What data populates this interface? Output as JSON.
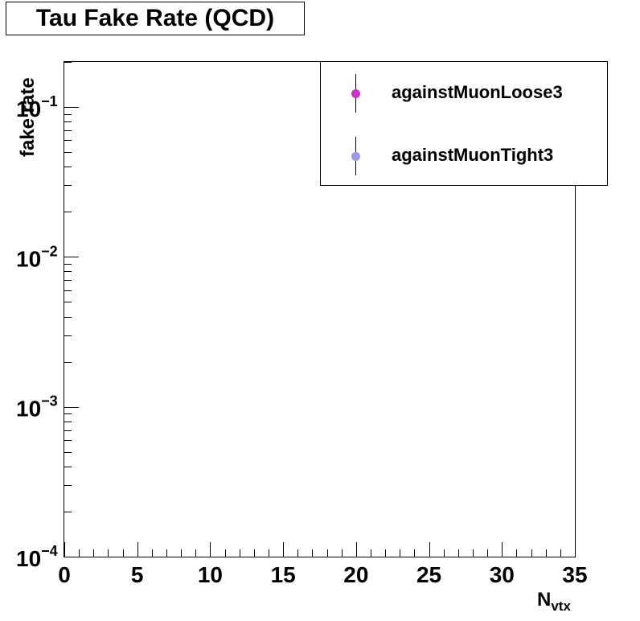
{
  "chart_data": {
    "type": "scatter",
    "title": "Tau Fake Rate (QCD)",
    "xlabel": "N",
    "xlabel_sub": "vtx",
    "ylabel": "fake rate",
    "xlim": [
      0,
      35
    ],
    "ylim": [
      0.0001,
      0.2
    ],
    "yscale": "log",
    "x_ticks": [
      "0",
      "5",
      "10",
      "15",
      "20",
      "25",
      "30",
      "35"
    ],
    "y_ticks": [
      {
        "base": "10",
        "exp": "−4"
      },
      {
        "base": "10",
        "exp": "−3"
      },
      {
        "base": "10",
        "exp": "−2"
      },
      {
        "base": "10",
        "exp": "−1"
      }
    ],
    "legend_position": "top-right",
    "grid": false,
    "series": [
      {
        "name": "againstMuonLoose3",
        "color": "#cc33cc",
        "x": [],
        "y": []
      },
      {
        "name": "againstMuonTight3",
        "color": "#9999ee",
        "x": [],
        "y": []
      }
    ]
  }
}
